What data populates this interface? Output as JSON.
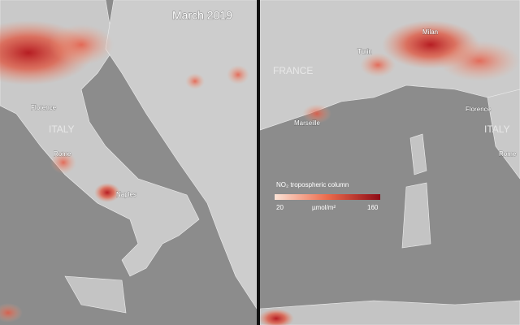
{
  "left_panel": {
    "title": "March 2019",
    "labels": [
      "Florence",
      "ITALY",
      "Rome",
      "Naples"
    ]
  },
  "right_panel": {
    "labels": [
      "FRANCE",
      "Turin",
      "Milan",
      "Marseille",
      "Florence",
      "ITALY",
      "Rome"
    ]
  },
  "legend": {
    "title": "NO₂ tropospheric column",
    "min": 20,
    "unit": "µmol/m²",
    "max": 160
  }
}
